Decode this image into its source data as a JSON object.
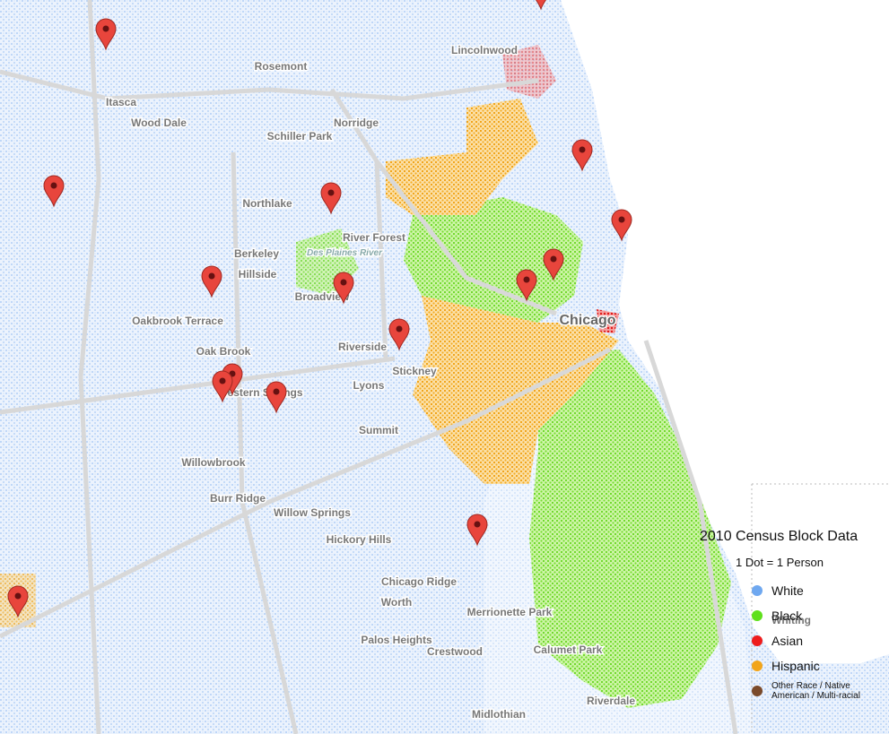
{
  "map": {
    "places": [
      "Rosemont",
      "Lincolnwood",
      "Itasca",
      "Wood Dale",
      "Schiller Park",
      "Norridge",
      "Northlake",
      "River Forest",
      "Des Plaines River",
      "Berkeley",
      "Hillside",
      "Broadview",
      "Oakbrook Terrace",
      "Chicago",
      "Oak Brook",
      "Riverside",
      "Stickney",
      "Western Springs",
      "Lyons",
      "Summit",
      "Willowbrook",
      "Burr Ridge",
      "Willow Springs",
      "Hickory Hills",
      "Chicago Ridge",
      "Worth",
      "Merrionette Park",
      "Palos Heights",
      "Crestwood",
      "Calumet Park",
      "Whiting",
      "Riverdale",
      "Midlothian"
    ],
    "legend": {
      "title": "2010 Census Block Data",
      "subtitle": "1 Dot = 1 Person",
      "items": [
        {
          "label": "White",
          "color": "#6fa8f0"
        },
        {
          "label": "Black",
          "color": "#5fe01c"
        },
        {
          "label": "Asian",
          "color": "#ee1c1c"
        },
        {
          "label": "Hispanic",
          "color": "#f2a51a"
        },
        {
          "label": "Other Race / Native American / Multi-racial",
          "color": "#7a4a2a"
        }
      ]
    }
  }
}
